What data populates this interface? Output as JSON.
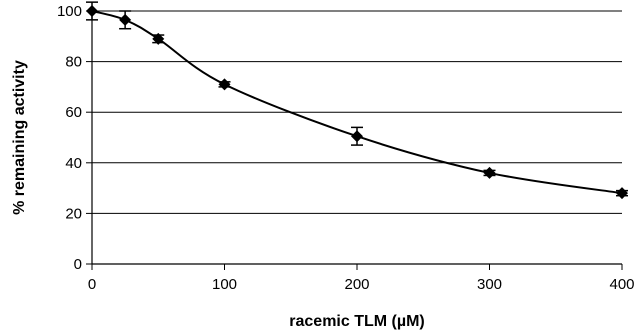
{
  "chart_data": {
    "type": "scatter",
    "title": "",
    "xlabel": "racemic TLM  (µM)",
    "ylabel": "% remaining activity",
    "xlim": [
      0,
      400
    ],
    "ylim": [
      0,
      100
    ],
    "x_ticks": [
      "0",
      "100",
      "200",
      "300",
      "400"
    ],
    "y_ticks": [
      "0",
      "20",
      "40",
      "60",
      "80",
      "100"
    ],
    "grid": "horizontal",
    "legend": "none",
    "smooth_line": true,
    "marker": "diamond",
    "series": [
      {
        "x": [
          0,
          25,
          50,
          100,
          200,
          300,
          400
        ],
        "y": [
          100,
          96.5,
          89,
          71,
          50.5,
          36,
          28
        ],
        "error": [
          3.5,
          3.5,
          1.5,
          1,
          3.5,
          1,
          1
        ]
      }
    ],
    "colors": {
      "line": "#000000",
      "grid": "#000000"
    }
  }
}
